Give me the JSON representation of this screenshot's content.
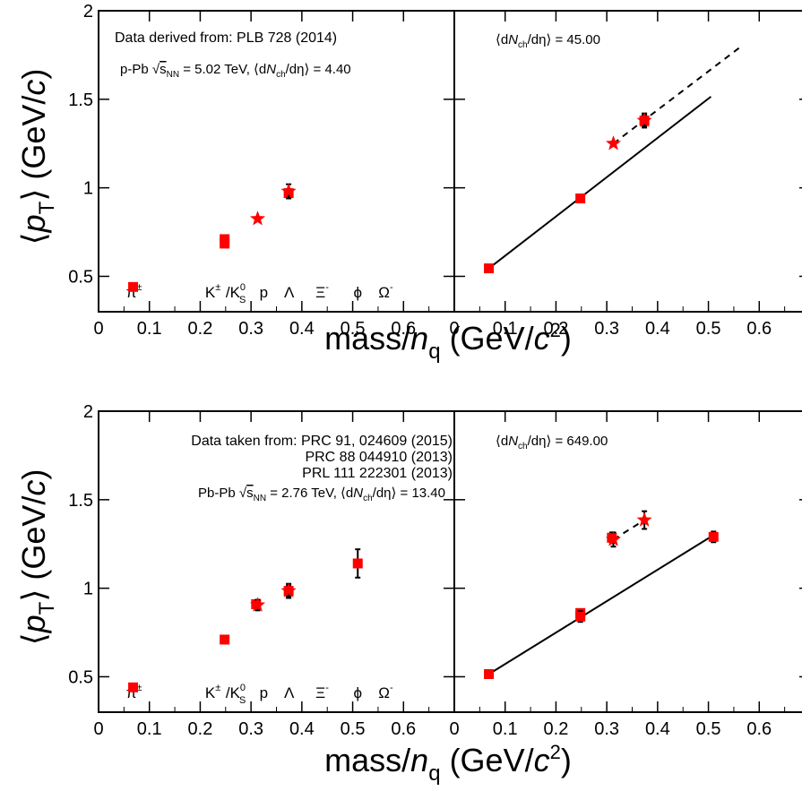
{
  "figure": {
    "ylabel_prefix": "⟨",
    "ylabel_p": "p",
    "ylabel_T": "T",
    "ylabel_suffix": "⟩ (GeV/",
    "ylabel_c": "c",
    "ylabel_close": ")",
    "xlabel_prefix": "mass/",
    "xlabel_n": "n",
    "xlabel_q": "q",
    "xlabel_mid": " (GeV/",
    "xlabel_c": "c",
    "xlabel_two": "2",
    "xlabel_close": ")"
  },
  "colors": {
    "marker": "#ff0000",
    "line": "#000000",
    "axis": "#000000"
  },
  "x_axis": {
    "ticks": [
      "0",
      "0.1",
      "0.2",
      "0.3",
      "0.4",
      "0.5",
      "0.6"
    ],
    "min": 0,
    "max": 0.7
  },
  "y_axis": {
    "ticks": [
      "0.5",
      "1",
      "1.5",
      "2"
    ],
    "tick_values": [
      0.5,
      1,
      1.5,
      2
    ],
    "min": 0.3,
    "max": 2.0
  },
  "particles": [
    {
      "label": "π",
      "sup": "±",
      "sub": "",
      "x": 0.07
    },
    {
      "label": "K",
      "sup": "±",
      "sub": "",
      "x": 0.225
    },
    {
      "label": "/K",
      "sup": "0",
      "sub": "S",
      "x": 0.27
    },
    {
      "label": "p",
      "sup": "",
      "sub": "",
      "x": 0.325
    },
    {
      "label": "Λ",
      "sup": "",
      "sub": "",
      "x": 0.375
    },
    {
      "label": "Ξ",
      "sup": "-",
      "sub": "",
      "x": 0.44
    },
    {
      "label": "ϕ",
      "sup": "",
      "sub": "",
      "x": 0.51
    },
    {
      "label": "Ω",
      "sup": "-",
      "sub": "",
      "x": 0.565
    }
  ],
  "top": {
    "left_notes": {
      "line1": "Data derived from: PLB 728 (2014)",
      "line2_a": "p-Pb ",
      "line2_sqrt": "√",
      "line2_s": "s",
      "line2_nn": "NN",
      "line2_b": " = 5.02 TeV, ⟨d",
      "line2_N": "N",
      "line2_ch": "ch",
      "line2_c": "/dη⟩ = 4.40"
    },
    "right_notes": {
      "a": "⟨d",
      "N": "N",
      "ch": "ch",
      "b": "/dη⟩ = 45.00"
    }
  },
  "bottom": {
    "left_notes": {
      "line1": "Data taken from: PRC 91, 024609 (2015)",
      "line2": "PRC 88 044910 (2013)",
      "line3": "PRL 111 222301 (2013)",
      "line4_a": "Pb-Pb ",
      "line4_sqrt": "√",
      "line4_s": "s",
      "line4_nn": "NN",
      "line4_b": " = 2.76 TeV, ⟨d",
      "line4_N": "N",
      "line4_ch": "ch",
      "line4_c": "/dη⟩ = 13.40"
    },
    "right_notes": {
      "a": "⟨d",
      "N": "N",
      "ch": "ch",
      "b": "/dη⟩ = 649.00"
    }
  },
  "chart_data": [
    {
      "type": "scatter",
      "panel": "top-left",
      "xlabel": "mass/n_q (GeV/c^2)",
      "ylabel": "⟨p_T⟩ (GeV/c)",
      "xlim": [
        0,
        0.7
      ],
      "ylim": [
        0.3,
        2.0
      ],
      "squares": [
        {
          "x": 0.068,
          "y": 0.44,
          "err": 0.0
        },
        {
          "x": 0.248,
          "y": 0.685,
          "err": 0.0
        },
        {
          "x": 0.248,
          "y": 0.71,
          "err": 0.0
        },
        {
          "x": 0.374,
          "y": 0.97,
          "err": 0.0
        }
      ],
      "stars": [
        {
          "x": 0.313,
          "y": 0.825,
          "err": 0.0
        },
        {
          "x": 0.374,
          "y": 0.98,
          "err": 0.04
        }
      ],
      "fit": null,
      "fit_dashed": null
    },
    {
      "type": "scatter",
      "panel": "top-right",
      "xlim": [
        0,
        0.7
      ],
      "ylim": [
        0.3,
        2.0
      ],
      "squares": [
        {
          "x": 0.068,
          "y": 0.545,
          "err": 0.0
        },
        {
          "x": 0.248,
          "y": 0.94,
          "err": 0.01
        },
        {
          "x": 0.374,
          "y": 1.38,
          "err": 0.03
        }
      ],
      "stars": [
        {
          "x": 0.313,
          "y": 1.25,
          "err": 0.0
        },
        {
          "x": 0.374,
          "y": 1.38,
          "err": 0.04
        }
      ],
      "fit": {
        "x": [
          0.068,
          0.505
        ],
        "y": [
          0.545,
          1.515
        ]
      },
      "fit_dashed": {
        "x": [
          0.313,
          0.565
        ],
        "y": [
          1.25,
          1.8
        ]
      }
    },
    {
      "type": "scatter",
      "panel": "bottom-left",
      "xlim": [
        0,
        0.7
      ],
      "ylim": [
        0.3,
        2.0
      ],
      "squares": [
        {
          "x": 0.068,
          "y": 0.44,
          "err": 0.0
        },
        {
          "x": 0.248,
          "y": 0.71,
          "err": 0.0
        },
        {
          "x": 0.31,
          "y": 0.91,
          "err": 0.02
        },
        {
          "x": 0.374,
          "y": 0.985,
          "err": 0.03
        },
        {
          "x": 0.51,
          "y": 1.14,
          "err": 0.08
        }
      ],
      "stars": [
        {
          "x": 0.313,
          "y": 0.905,
          "err": 0.03
        },
        {
          "x": 0.374,
          "y": 0.985,
          "err": 0.04
        }
      ],
      "fit": null,
      "fit_dashed": null
    },
    {
      "type": "scatter",
      "panel": "bottom-right",
      "xlim": [
        0,
        0.7
      ],
      "ylim": [
        0.3,
        2.0
      ],
      "squares": [
        {
          "x": 0.068,
          "y": 0.515,
          "err": 0.0
        },
        {
          "x": 0.248,
          "y": 0.86,
          "err": 0.02
        },
        {
          "x": 0.248,
          "y": 0.84,
          "err": 0.03
        },
        {
          "x": 0.31,
          "y": 1.285,
          "err": 0.03
        },
        {
          "x": 0.51,
          "y": 1.29,
          "err": 0.03
        }
      ],
      "stars": [
        {
          "x": 0.313,
          "y": 1.275,
          "err": 0.04
        },
        {
          "x": 0.374,
          "y": 1.385,
          "err": 0.05
        }
      ],
      "fit": {
        "x": [
          0.068,
          0.51
        ],
        "y": [
          0.515,
          1.3
        ]
      },
      "fit_dashed": {
        "x": [
          0.313,
          0.374
        ],
        "y": [
          1.275,
          1.385
        ]
      }
    }
  ]
}
